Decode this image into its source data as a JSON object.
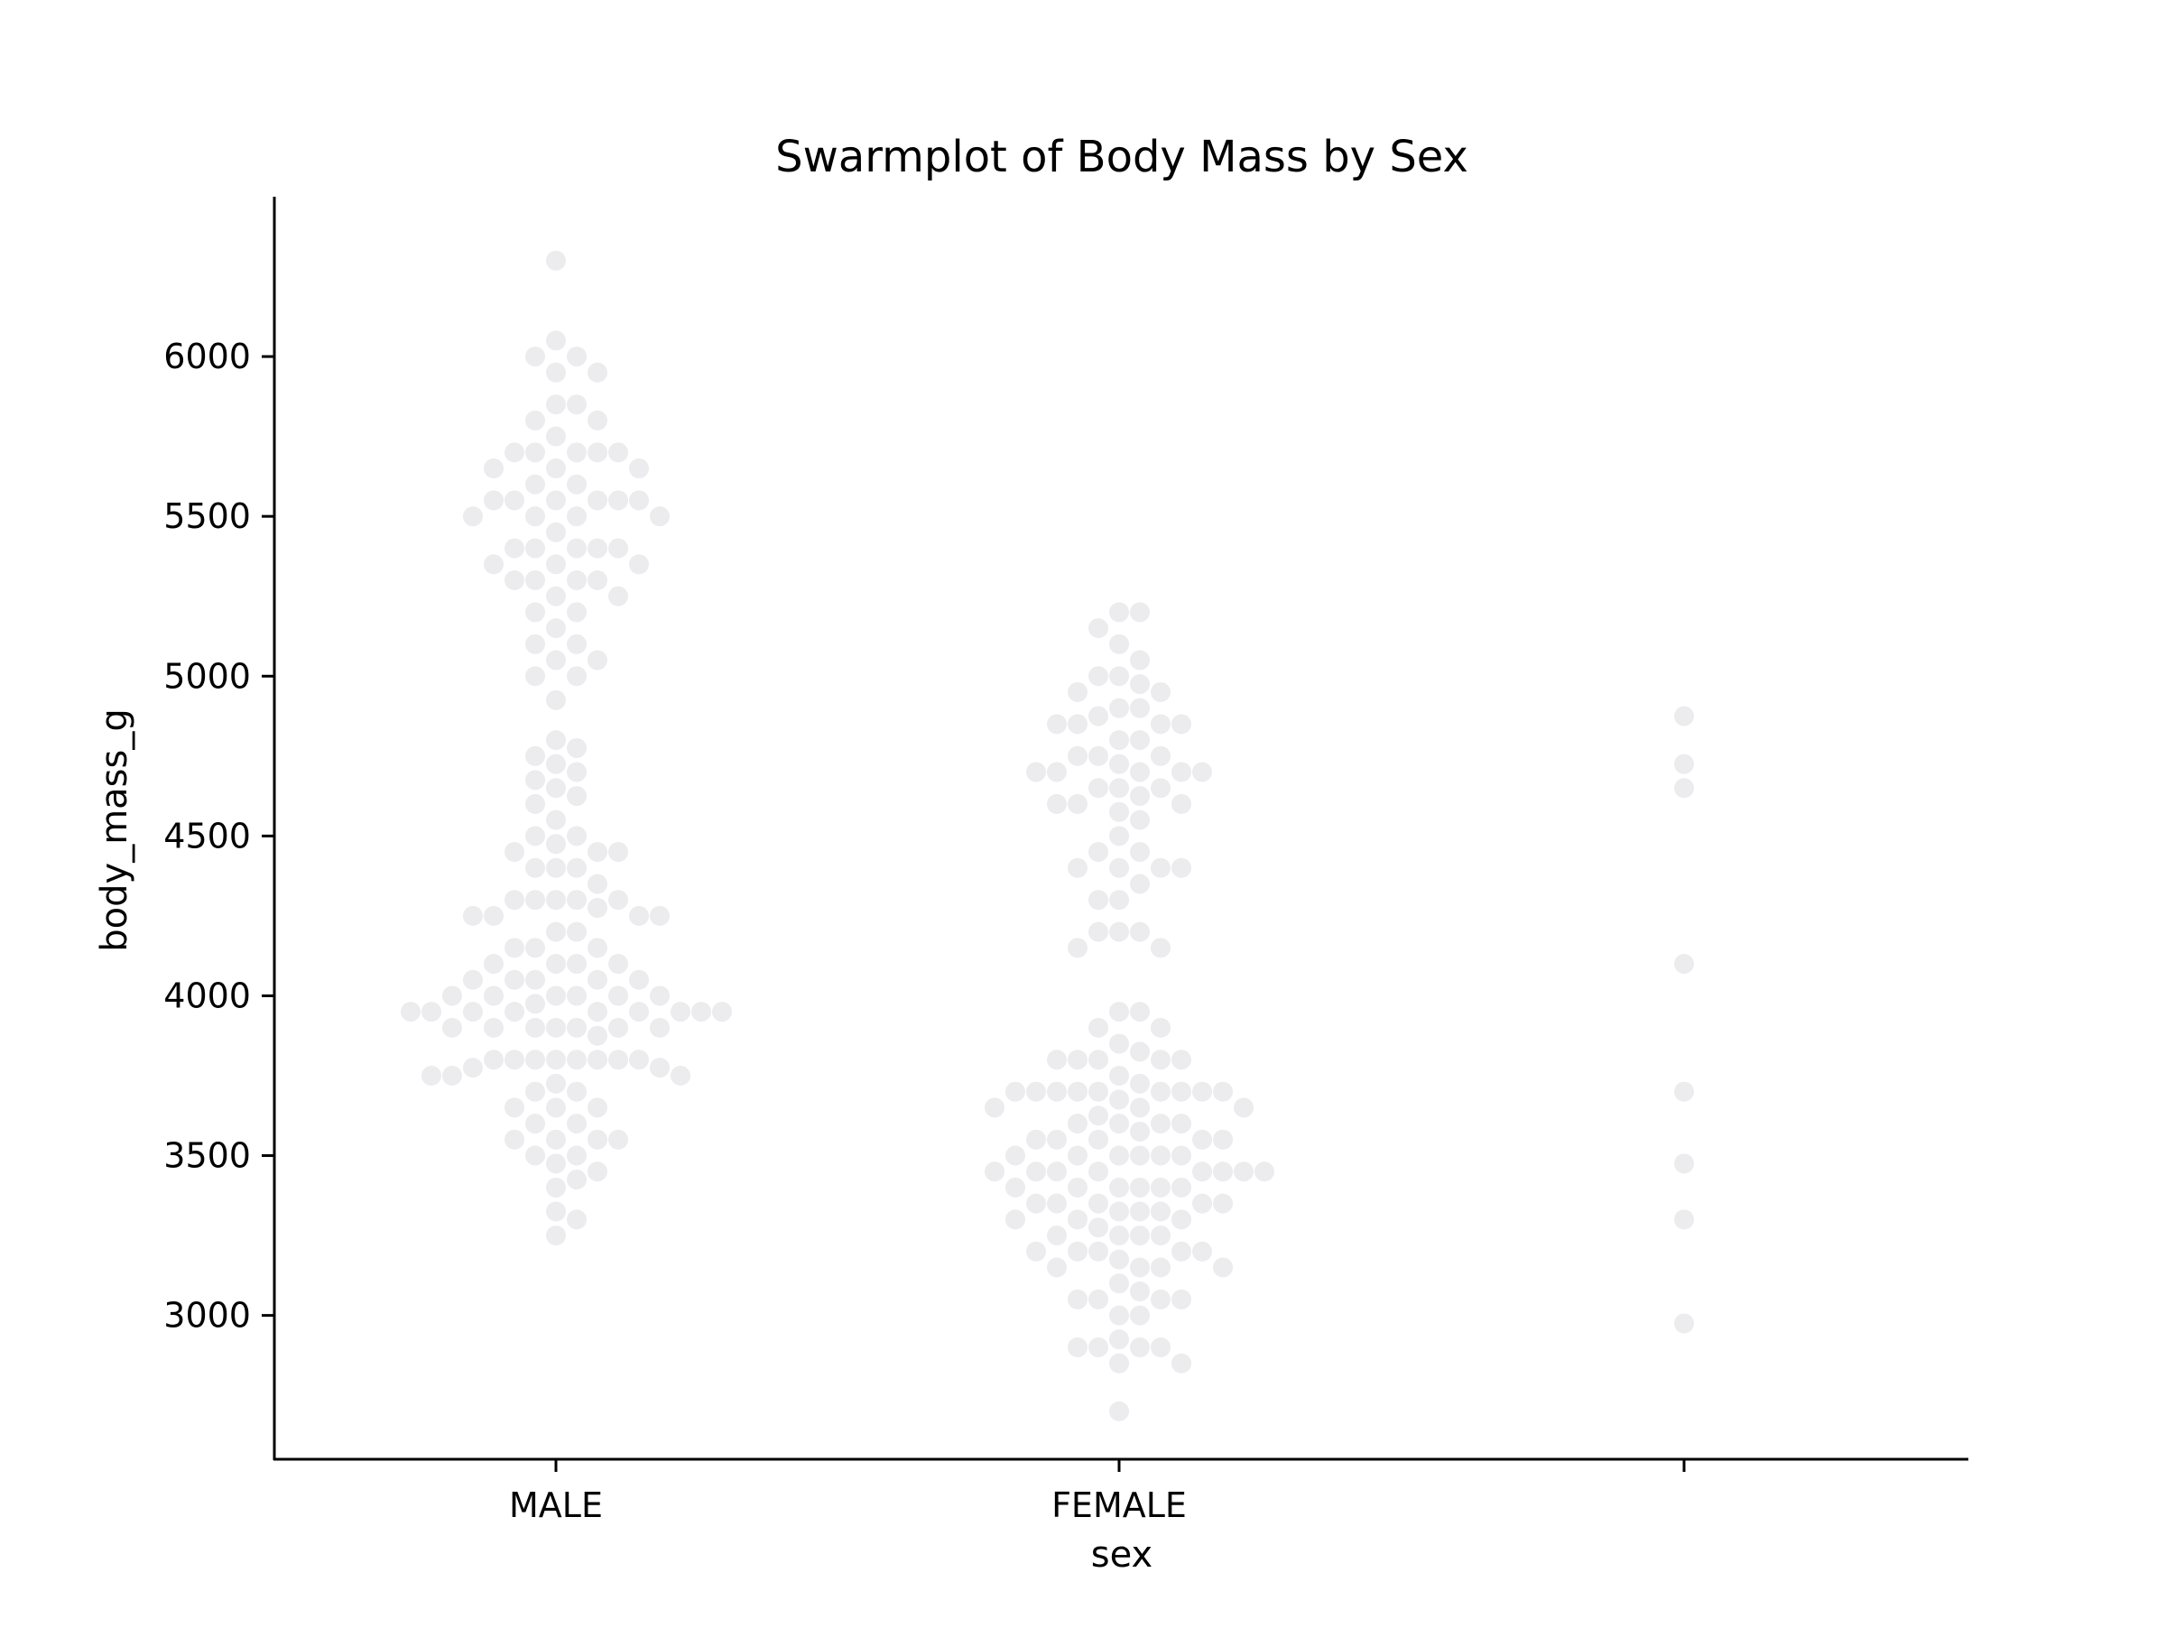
{
  "chart_data": {
    "type": "scatter",
    "subtype": "swarmplot",
    "title": "Swarmplot of Body Mass by Sex",
    "xlabel": "sex",
    "ylabel": "body_mass_g",
    "categories": [
      "MALE",
      "FEMALE",
      ""
    ],
    "yticks": [
      3000,
      3500,
      4000,
      4500,
      5000,
      5500,
      6000
    ],
    "ylim": [
      2550,
      6500
    ],
    "grid": false,
    "legend": "none",
    "marker_color": "#ECEBED",
    "series": [
      {
        "category": "MALE",
        "values": [
          6300,
          6050,
          6000,
          6000,
          5950,
          5950,
          5850,
          5850,
          5800,
          5800,
          5750,
          5700,
          5700,
          5700,
          5700,
          5700,
          5650,
          5650,
          5650,
          5600,
          5600,
          5550,
          5550,
          5550,
          5550,
          5550,
          5550,
          5500,
          5500,
          5500,
          5500,
          5450,
          5400,
          5400,
          5400,
          5400,
          5400,
          5350,
          5350,
          5350,
          5300,
          5300,
          5300,
          5300,
          5250,
          5250,
          5200,
          5200,
          5150,
          5100,
          5100,
          5050,
          5050,
          5000,
          5000,
          4925,
          4800,
          4775,
          4750,
          4725,
          4700,
          4675,
          4650,
          4625,
          4600,
          4550,
          4500,
          4500,
          4475,
          4450,
          4450,
          4450,
          4400,
          4400,
          4400,
          4350,
          4300,
          4300,
          4300,
          4300,
          4300,
          4275,
          4250,
          4250,
          4250,
          4250,
          4200,
          4200,
          4150,
          4150,
          4150,
          4100,
          4100,
          4100,
          4100,
          4050,
          4050,
          4050,
          4050,
          4050,
          4000,
          4000,
          4000,
          4000,
          4000,
          4000,
          3975,
          3950,
          3950,
          3950,
          3950,
          3950,
          3950,
          3950,
          3950,
          3950,
          3900,
          3900,
          3900,
          3900,
          3900,
          3900,
          3900,
          3875,
          3800,
          3800,
          3800,
          3800,
          3800,
          3800,
          3800,
          3800,
          3775,
          3775,
          3750,
          3750,
          3750,
          3725,
          3700,
          3700,
          3650,
          3650,
          3650,
          3600,
          3600,
          3550,
          3550,
          3550,
          3550,
          3500,
          3500,
          3475,
          3450,
          3425,
          3400,
          3325,
          3300,
          3250
        ]
      },
      {
        "category": "FEMALE",
        "values": [
          5200,
          5200,
          5150,
          5100,
          5050,
          5000,
          5000,
          4975,
          4950,
          4950,
          4900,
          4900,
          4875,
          4850,
          4850,
          4850,
          4850,
          4800,
          4800,
          4750,
          4750,
          4750,
          4725,
          4700,
          4700,
          4700,
          4700,
          4700,
          4650,
          4650,
          4650,
          4625,
          4600,
          4600,
          4600,
          4575,
          4550,
          4500,
          4450,
          4450,
          4400,
          4400,
          4400,
          4400,
          4350,
          4300,
          4300,
          4200,
          4200,
          4200,
          4150,
          4150,
          3950,
          3950,
          3900,
          3900,
          3850,
          3825,
          3800,
          3800,
          3800,
          3800,
          3800,
          3750,
          3725,
          3700,
          3700,
          3700,
          3700,
          3700,
          3700,
          3700,
          3700,
          3700,
          3675,
          3650,
          3650,
          3650,
          3625,
          3600,
          3600,
          3600,
          3600,
          3575,
          3550,
          3550,
          3550,
          3550,
          3550,
          3500,
          3500,
          3500,
          3500,
          3500,
          3500,
          3450,
          3450,
          3450,
          3450,
          3450,
          3450,
          3450,
          3450,
          3400,
          3400,
          3400,
          3400,
          3400,
          3400,
          3350,
          3350,
          3350,
          3350,
          3350,
          3325,
          3325,
          3325,
          3300,
          3300,
          3300,
          3275,
          3250,
          3250,
          3250,
          3250,
          3200,
          3200,
          3200,
          3200,
          3200,
          3175,
          3150,
          3150,
          3150,
          3150,
          3100,
          3075,
          3050,
          3050,
          3050,
          3050,
          3000,
          3000,
          2925,
          2900,
          2900,
          2900,
          2900,
          2850,
          2850,
          2700
        ]
      },
      {
        "category": "",
        "values": [
          4875,
          4725,
          4650,
          4100,
          3700,
          3475,
          3300,
          2975
        ]
      }
    ]
  }
}
